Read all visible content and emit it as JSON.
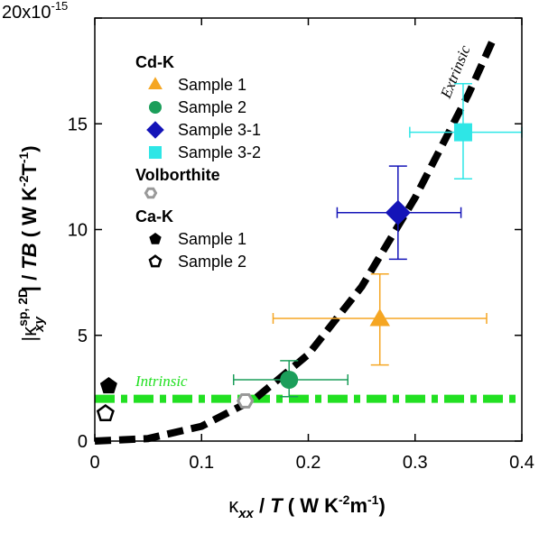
{
  "chart_data": {
    "type": "scatter",
    "ylabel_multiplier": "20x10",
    "ylabel_multiplier_exp": "-15",
    "xlim": [
      0,
      0.4
    ],
    "ylim": [
      0,
      20
    ],
    "x_ticks": [
      0,
      0.1,
      0.2,
      0.3,
      0.4
    ],
    "x_tick_labels": [
      "0",
      "0.1",
      "0.2",
      "0.3",
      "0.4"
    ],
    "y_ticks": [
      0,
      5,
      10,
      15,
      20
    ],
    "y_tick_labels": [
      "0",
      "5",
      "10",
      "15"
    ],
    "xlabel": {
      "kappa": "κ",
      "sub": "xx",
      "rest": " / ",
      "T": "T",
      "units": " ( W K",
      "exp1": "-2",
      "m": "m",
      "exp2": "-1",
      "close": ")"
    },
    "ylabel": {
      "pre": "|κ",
      "sup": "sp, 2D",
      "sub": "xy",
      "mid": "| / ",
      "TB": "TB",
      "units": " ( W K",
      "exp1": "-2",
      "T2": "T",
      "exp2": "-1",
      "close": ")"
    },
    "legend": {
      "groups": [
        {
          "title": "Cd-K",
          "items": [
            {
              "label": "Sample 1",
              "marker": "triangle",
              "color": "#F5A623"
            },
            {
              "label": "Sample 2",
              "marker": "circle",
              "color": "#1B9E5A"
            },
            {
              "label": "Sample 3-1",
              "marker": "diamond",
              "color": "#1414B8"
            },
            {
              "label": "Sample 3-2",
              "marker": "square",
              "color": "#2EE6E6"
            }
          ]
        },
        {
          "title": "Volborthite",
          "items": [
            {
              "label": "",
              "marker": "hexagon-open",
              "color": "#999999"
            }
          ]
        },
        {
          "title": "Ca-K",
          "items": [
            {
              "label": "Sample 1",
              "marker": "pentagon",
              "color": "#000000"
            },
            {
              "label": "Sample 2",
              "marker": "pentagon-open",
              "color": "#000000"
            }
          ]
        }
      ],
      "placement": "top-left"
    },
    "series": [
      {
        "name": "Cd-K Sample 1",
        "marker": "triangle",
        "color": "#F5A623",
        "x": 0.267,
        "y": 5.8,
        "xerr": [
          0.167,
          0.367
        ],
        "yerr": [
          3.6,
          7.9
        ]
      },
      {
        "name": "Cd-K Sample 2",
        "marker": "circle",
        "color": "#1B9E5A",
        "x": 0.182,
        "y": 2.9,
        "xerr": [
          0.13,
          0.237
        ],
        "yerr": [
          2.1,
          3.8
        ]
      },
      {
        "name": "Cd-K Sample 3-1",
        "marker": "diamond",
        "color": "#1414B8",
        "x": 0.284,
        "y": 10.8,
        "xerr": [
          0.227,
          0.343
        ],
        "yerr": [
          8.6,
          13.0
        ]
      },
      {
        "name": "Cd-K Sample 3-2",
        "marker": "square",
        "color": "#2EE6E6",
        "x": 0.345,
        "y": 14.6,
        "xerr": [
          0.295,
          0.4
        ],
        "yerr": [
          12.4,
          16.9
        ]
      },
      {
        "name": "Volborthite",
        "marker": "hexagon-open",
        "color": "#999999",
        "x": 0.141,
        "y": 1.9
      },
      {
        "name": "Ca-K Sample 1",
        "marker": "pentagon",
        "color": "#000000",
        "x": 0.013,
        "y": 2.6
      },
      {
        "name": "Ca-K Sample 2",
        "marker": "pentagon-open",
        "color": "#000000",
        "x": 0.01,
        "y": 1.3
      }
    ],
    "intrinsic_line": {
      "label": "Intrinsic",
      "y": 2.0,
      "color": "#22E022"
    },
    "extrinsic_curve": {
      "label": "Extrinsic",
      "color": "#000000",
      "x": [
        0,
        0.05,
        0.1,
        0.15,
        0.2,
        0.25,
        0.3,
        0.35,
        0.375
      ],
      "y": [
        0,
        0.12,
        0.7,
        2.0,
        4.1,
        7.3,
        11.5,
        16.4,
        19.2
      ]
    },
    "grid": false
  }
}
